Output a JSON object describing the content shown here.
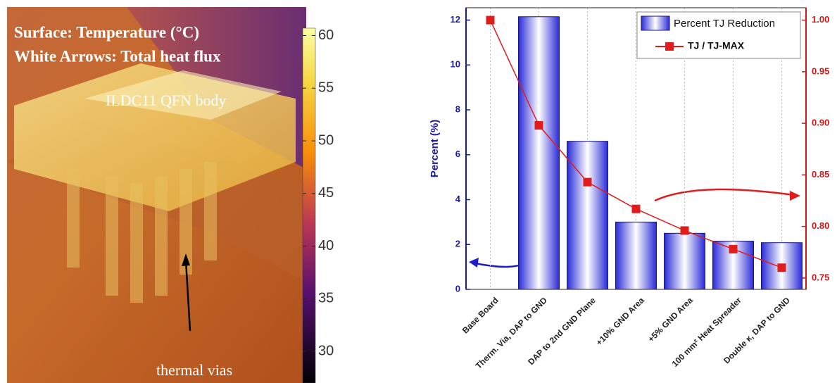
{
  "simulation": {
    "title_lines": [
      "Surface: Temperature (°C)",
      "White Arrows: Total heat flux"
    ],
    "labels": [
      "ILDC11 QFN body",
      "thermal vias"
    ],
    "colorbar": {
      "range": [
        27,
        60.7
      ],
      "ticks": [
        30,
        35,
        40,
        45,
        50,
        55,
        60
      ]
    }
  },
  "chart_data": {
    "type": "bar-line",
    "categories": [
      "Base Board",
      "Therm. Via, DAP to GND",
      "DAP to 2nd GND Plane",
      "+10% GND Area",
      "+5% GND Area",
      "100 mm² Heat Spreader",
      "Double κ, DAP to GND"
    ],
    "series": [
      {
        "name": "Percent TJ Reduction",
        "type": "bar",
        "color": "#2a2ad8",
        "values": [
          0,
          12.15,
          6.6,
          3.0,
          2.5,
          2.15,
          2.08
        ]
      },
      {
        "name": "TJ / TJ-MAX",
        "type": "line",
        "axis": "y2",
        "color": "#e01c1c",
        "values": [
          1.0,
          0.898,
          0.843,
          0.817,
          0.796,
          0.778,
          0.76
        ]
      }
    ],
    "y_label": "Percent  (%)",
    "ylim": [
      0,
      12.55
    ],
    "yticks": [
      0,
      2,
      4,
      6,
      8,
      10,
      12
    ],
    "y2lim": [
      0.739,
      1.012
    ],
    "y2ticks": [
      {
        "value": 0.75,
        "label": "0.75"
      },
      {
        "value": 0.8,
        "label": "0.80"
      },
      {
        "value": 0.85,
        "label": "0.85"
      },
      {
        "value": 0.9,
        "label": "0.90"
      },
      {
        "value": 0.95,
        "label": "0.95"
      },
      {
        "value": 1.0,
        "label": "1.00"
      }
    ],
    "xgrid": true,
    "legend": "top-right"
  }
}
